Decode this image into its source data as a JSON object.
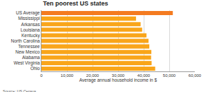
{
  "chart_data": {
    "type": "bar",
    "orientation": "horizontal",
    "title": "Ten poorest US states",
    "categories": [
      "US Average",
      "Mississippi",
      "Arkansas",
      "Louisiana",
      "Kentucky",
      "North Carolina",
      "Tennessee",
      "New Mexico",
      "Alabama",
      "West Virginia",
      "Ohio"
    ],
    "values": [
      51400,
      37000,
      38800,
      39400,
      41100,
      41900,
      42200,
      43000,
      42900,
      43100,
      44500
    ],
    "colors": [
      "#f47b20",
      "#f9a51a",
      "#f9a51a",
      "#f9a51a",
      "#f9a51a",
      "#f9a51a",
      "#f9a51a",
      "#f9a51a",
      "#f9a51a",
      "#f9a51a",
      "#f9a51a"
    ],
    "x_label": "Average annual household income in $",
    "xlim": [
      0,
      60000
    ],
    "xticks": [
      0,
      {
        "value": 10000,
        "label": "10,000"
      },
      {
        "value": 20000,
        "label": "20,000"
      },
      {
        "value": 30000,
        "label": "30,000"
      },
      {
        "value": 40000,
        "label": "40,000"
      },
      {
        "value": 50000,
        "label": "50,000"
      },
      {
        "value": 60000,
        "label": "60,000"
      }
    ],
    "grid": true,
    "source": "Source: US Census"
  }
}
